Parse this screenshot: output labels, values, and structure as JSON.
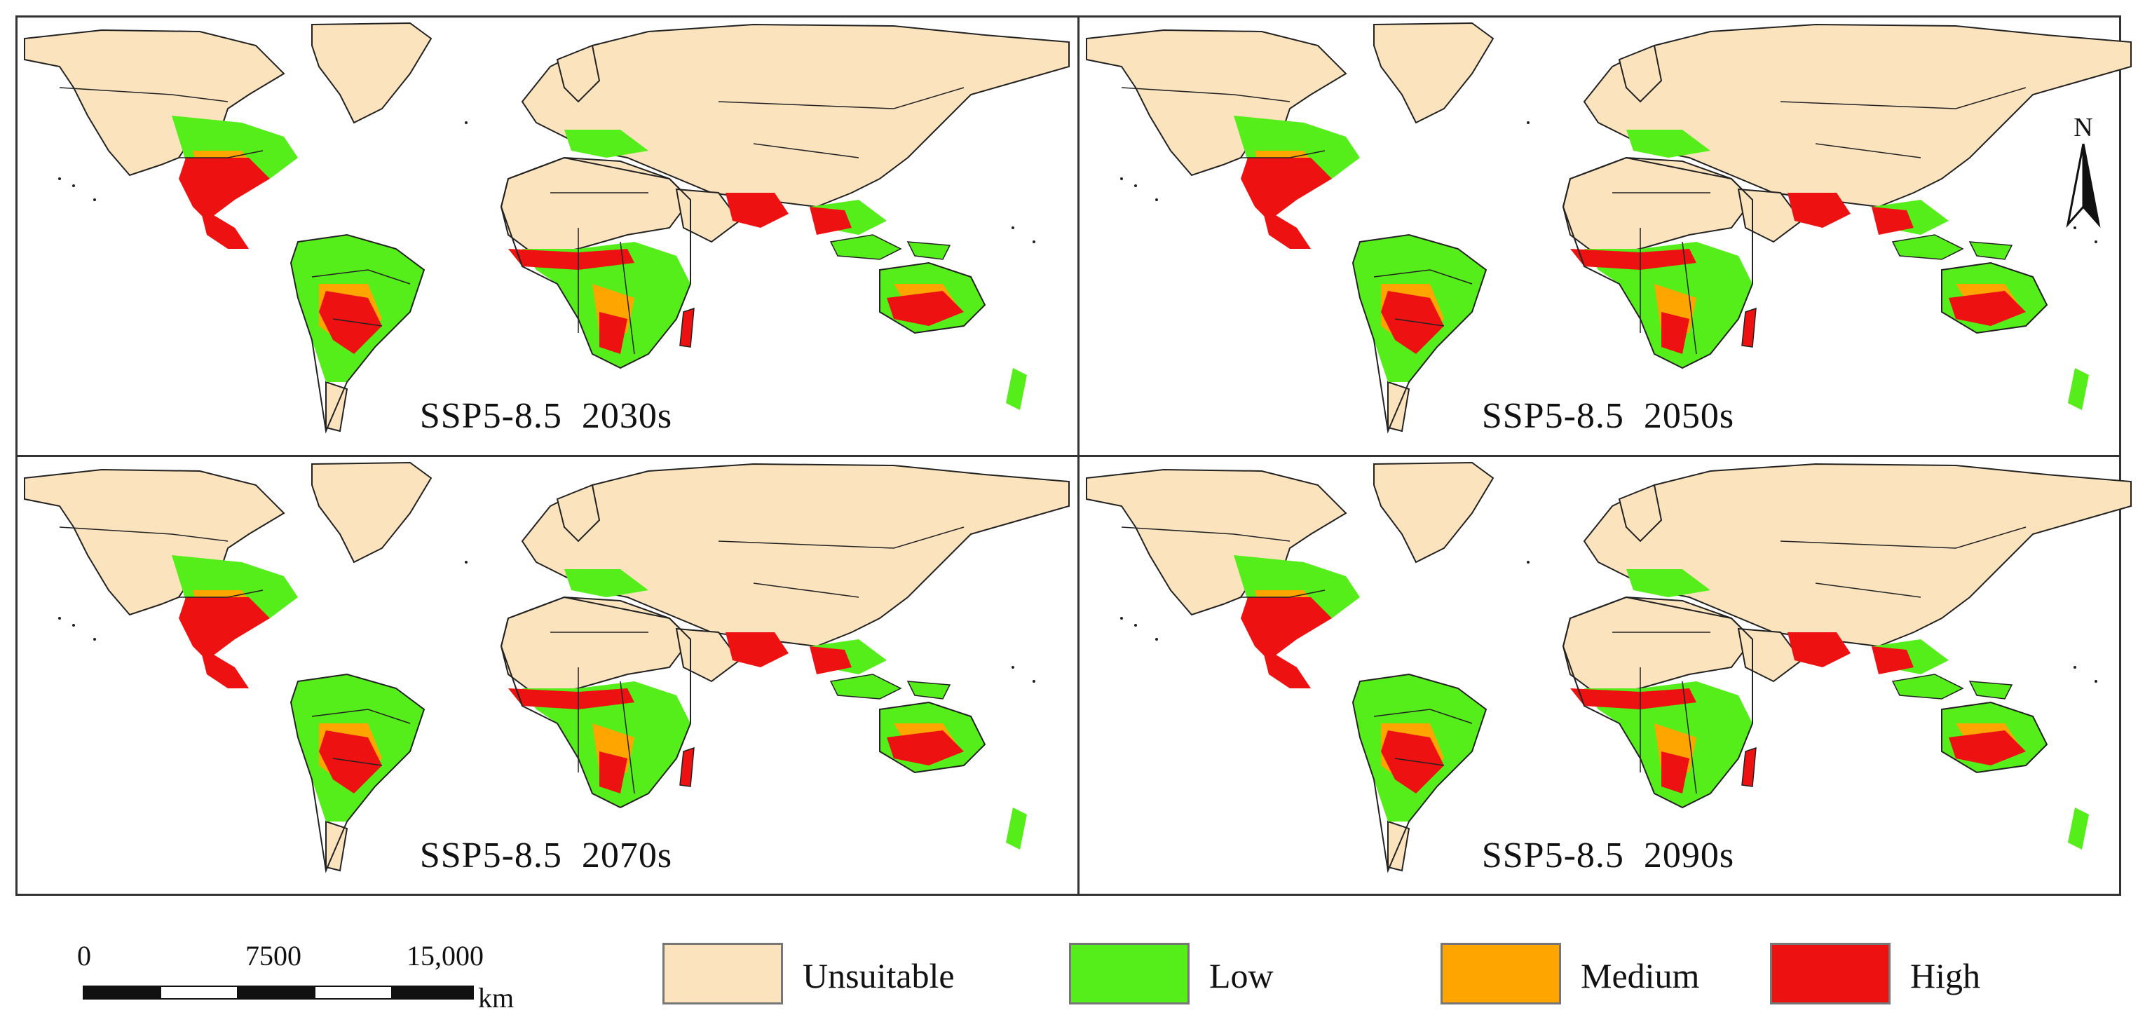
{
  "panels": [
    {
      "label": "SSP5-8.5  2030s"
    },
    {
      "label": "SSP5-8.5  2050s"
    },
    {
      "label": "SSP5-8.5  2070s"
    },
    {
      "label": "SSP5-8.5  2090s"
    }
  ],
  "north_arrow": {
    "label": "N"
  },
  "scale_bar": {
    "ticks": [
      "0",
      "7500",
      "15,000"
    ],
    "unit": "km"
  },
  "legend": {
    "items": [
      {
        "label": "Unsuitable",
        "color": "#fbe3bd"
      },
      {
        "label": "Low",
        "color": "#55ee1a"
      },
      {
        "label": "Medium",
        "color": "#ffa500"
      },
      {
        "label": "High",
        "color": "#ee1111"
      }
    ]
  },
  "colors": {
    "border": "#333333",
    "ocean": "#ffffff",
    "country_line": "#222222"
  }
}
